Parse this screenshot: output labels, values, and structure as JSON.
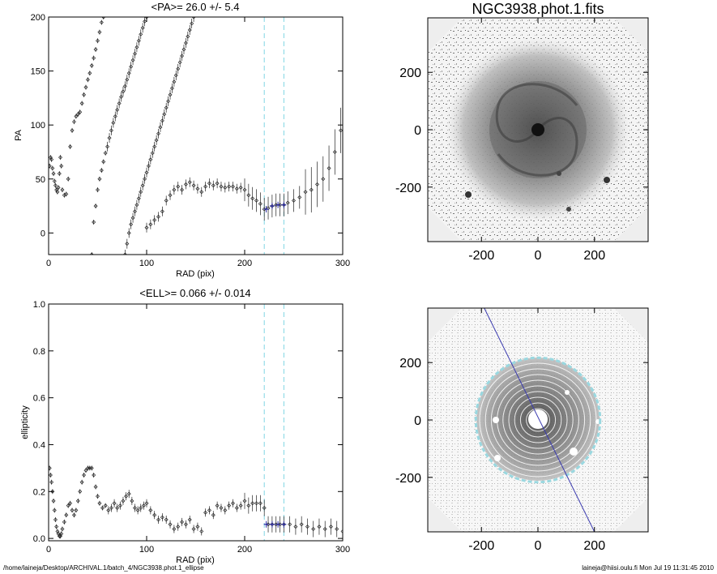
{
  "chart_data": [
    {
      "type": "scatter",
      "title": "<PA>=  26.0 +/-   5.4",
      "xlabel": "RAD (pix)",
      "ylabel": "PA",
      "xlim": [
        0,
        300
      ],
      "ylim": [
        -20,
        200
      ],
      "xticks": [
        "0",
        "100",
        "200",
        "300"
      ],
      "yticks": [
        "0",
        "50",
        "100",
        "150",
        "200"
      ],
      "vlines": [
        220,
        240
      ],
      "series": [
        {
          "points": [
            [
              1,
              62
            ],
            [
              2,
              70
            ],
            [
              3,
              68
            ],
            [
              4,
              60
            ],
            [
              5,
              55
            ],
            [
              6,
              48
            ],
            [
              7,
              44
            ],
            [
              8,
              40
            ],
            [
              9,
              38
            ],
            [
              10,
              42
            ],
            [
              11,
              55
            ],
            [
              12,
              70
            ],
            [
              13,
              62
            ],
            [
              14,
              40
            ],
            [
              16,
              35
            ],
            [
              18,
              36
            ],
            [
              20,
              50
            ],
            [
              22,
              80
            ],
            [
              24,
              95
            ],
            [
              26,
              103
            ],
            [
              28,
              108
            ],
            [
              30,
              110
            ],
            [
              32,
              112
            ],
            [
              34,
              120
            ],
            [
              36,
              128
            ],
            [
              38,
              135
            ],
            [
              40,
              142
            ],
            [
              42,
              148
            ],
            [
              44,
              155
            ],
            [
              46,
              162
            ],
            [
              48,
              170
            ],
            [
              50,
              178
            ],
            [
              52,
              186
            ],
            [
              54,
              195
            ],
            [
              56,
              200
            ]
          ]
        },
        {
          "points": [
            [
              44,
              -20
            ],
            [
              46,
              10
            ],
            [
              48,
              25
            ],
            [
              50,
              40
            ],
            [
              52,
              50
            ],
            [
              54,
              58
            ],
            [
              56,
              66
            ],
            [
              58,
              74
            ],
            [
              60,
              80
            ],
            [
              62,
              88
            ],
            [
              64,
              95
            ],
            [
              66,
              102
            ],
            [
              68,
              108
            ],
            [
              70,
              114
            ],
            [
              72,
              120
            ],
            [
              74,
              126
            ],
            [
              76,
              131
            ],
            [
              78,
              136
            ],
            [
              80,
              142
            ],
            [
              82,
              148
            ],
            [
              84,
              154
            ],
            [
              86,
              160
            ],
            [
              88,
              166
            ],
            [
              90,
              172
            ],
            [
              92,
              178
            ],
            [
              94,
              184
            ],
            [
              96,
              190
            ],
            [
              98,
              196
            ],
            [
              100,
              200
            ]
          ]
        },
        {
          "points": [
            [
              78,
              -20
            ],
            [
              80,
              -10
            ],
            [
              82,
              0
            ],
            [
              84,
              8
            ],
            [
              86,
              14
            ],
            [
              88,
              20
            ],
            [
              90,
              26
            ],
            [
              92,
              32
            ],
            [
              94,
              38
            ],
            [
              96,
              44
            ],
            [
              98,
              50
            ],
            [
              100,
              56
            ],
            [
              102,
              62
            ],
            [
              104,
              68
            ],
            [
              106,
              74
            ],
            [
              108,
              80
            ],
            [
              110,
              86
            ],
            [
              112,
              92
            ],
            [
              114,
              98
            ],
            [
              116,
              104
            ],
            [
              118,
              110
            ],
            [
              120,
              116
            ],
            [
              122,
              122
            ],
            [
              124,
              128
            ],
            [
              126,
              134
            ],
            [
              128,
              140
            ],
            [
              130,
              146
            ],
            [
              132,
              152
            ],
            [
              134,
              158
            ],
            [
              136,
              164
            ],
            [
              138,
              170
            ],
            [
              140,
              176
            ],
            [
              142,
              182
            ],
            [
              144,
              188
            ],
            [
              146,
              194
            ],
            [
              148,
              200
            ]
          ]
        },
        {
          "points": [
            [
              100,
              5
            ],
            [
              104,
              8
            ],
            [
              108,
              12
            ],
            [
              112,
              15
            ],
            [
              116,
              20
            ],
            [
              120,
              30
            ],
            [
              124,
              35
            ],
            [
              128,
              40
            ],
            [
              132,
              43
            ],
            [
              136,
              40
            ],
            [
              140,
              45
            ],
            [
              144,
              47
            ],
            [
              148,
              44
            ],
            [
              152,
              41
            ],
            [
              156,
              38
            ],
            [
              160,
              43
            ],
            [
              164,
              46
            ],
            [
              168,
              44
            ],
            [
              172,
              46
            ],
            [
              176,
              43
            ],
            [
              180,
              42
            ],
            [
              184,
              43
            ],
            [
              188,
              43
            ],
            [
              192,
              41
            ],
            [
              196,
              42
            ],
            [
              200,
              40
            ],
            [
              204,
              35
            ],
            [
              208,
              32
            ],
            [
              212,
              30
            ],
            [
              216,
              27
            ],
            [
              220,
              22
            ],
            [
              224,
              23
            ],
            [
              228,
              25
            ],
            [
              232,
              26
            ],
            [
              236,
              26
            ],
            [
              240,
              26
            ],
            [
              244,
              28
            ],
            [
              250,
              30
            ],
            [
              256,
              33
            ],
            [
              262,
              38
            ],
            [
              268,
              40
            ],
            [
              274,
              45
            ],
            [
              280,
              50
            ],
            [
              286,
              60
            ],
            [
              292,
              75
            ],
            [
              298,
              95
            ]
          ]
        }
      ],
      "highlight_points": [
        [
          222,
          22
        ],
        [
          228,
          25
        ],
        [
          234,
          26
        ],
        [
          240,
          26
        ]
      ]
    },
    {
      "type": "scatter",
      "title": "<ELL>= 0.066 +/-  0.014",
      "xlabel": "RAD (pix)",
      "ylabel": "ellipticity",
      "xlim": [
        0,
        300
      ],
      "ylim": [
        -0.01,
        1.0
      ],
      "xticks": [
        "0",
        "100",
        "200",
        "300"
      ],
      "yticks": [
        "0.0",
        "0.2",
        "0.4",
        "0.6",
        "0.8",
        "1.0"
      ],
      "vlines": [
        220,
        240
      ],
      "series": [
        {
          "points": [
            [
              1,
              0.3
            ],
            [
              2,
              0.27
            ],
            [
              3,
              0.24
            ],
            [
              4,
              0.2
            ],
            [
              5,
              0.16
            ],
            [
              6,
              0.12
            ],
            [
              7,
              0.08
            ],
            [
              8,
              0.05
            ],
            [
              9,
              0.03
            ],
            [
              10,
              0.02
            ],
            [
              11,
              0.01
            ],
            [
              12,
              0.01
            ],
            [
              13,
              0.02
            ],
            [
              14,
              0.04
            ],
            [
              16,
              0.07
            ],
            [
              18,
              0.1
            ],
            [
              20,
              0.14
            ],
            [
              22,
              0.15
            ],
            [
              24,
              0.12
            ],
            [
              26,
              0.1
            ],
            [
              28,
              0.12
            ],
            [
              30,
              0.16
            ],
            [
              32,
              0.2
            ],
            [
              34,
              0.24
            ],
            [
              36,
              0.27
            ],
            [
              38,
              0.29
            ],
            [
              40,
              0.3
            ],
            [
              42,
              0.3
            ],
            [
              44,
              0.3
            ],
            [
              46,
              0.27
            ],
            [
              48,
              0.22
            ],
            [
              50,
              0.18
            ],
            [
              52,
              0.15
            ],
            [
              55,
              0.13
            ],
            [
              58,
              0.14
            ],
            [
              61,
              0.12
            ],
            [
              64,
              0.13
            ],
            [
              67,
              0.15
            ],
            [
              70,
              0.13
            ],
            [
              73,
              0.14
            ],
            [
              76,
              0.16
            ],
            [
              79,
              0.18
            ],
            [
              82,
              0.19
            ],
            [
              85,
              0.16
            ],
            [
              88,
              0.13
            ],
            [
              91,
              0.12
            ],
            [
              94,
              0.13
            ],
            [
              97,
              0.14
            ],
            [
              100,
              0.15
            ],
            [
              104,
              0.12
            ],
            [
              108,
              0.1
            ],
            [
              112,
              0.08
            ],
            [
              116,
              0.09
            ],
            [
              120,
              0.08
            ],
            [
              124,
              0.06
            ],
            [
              128,
              0.04
            ],
            [
              132,
              0.05
            ],
            [
              136,
              0.07
            ],
            [
              140,
              0.06
            ],
            [
              144,
              0.08
            ],
            [
              148,
              0.04
            ],
            [
              152,
              0.05
            ],
            [
              156,
              0.03
            ],
            [
              160,
              0.11
            ],
            [
              164,
              0.12
            ],
            [
              168,
              0.1
            ],
            [
              172,
              0.14
            ],
            [
              176,
              0.13
            ],
            [
              180,
              0.12
            ],
            [
              184,
              0.14
            ],
            [
              188,
              0.15
            ],
            [
              192,
              0.13
            ],
            [
              196,
              0.14
            ],
            [
              200,
              0.16
            ],
            [
              204,
              0.14
            ],
            [
              208,
              0.15
            ],
            [
              212,
              0.15
            ],
            [
              216,
              0.15
            ],
            [
              220,
              0.13
            ],
            [
              224,
              0.06
            ],
            [
              228,
              0.06
            ],
            [
              232,
              0.06
            ],
            [
              236,
              0.06
            ],
            [
              240,
              0.06
            ],
            [
              246,
              0.06
            ],
            [
              252,
              0.05
            ],
            [
              258,
              0.06
            ],
            [
              264,
              0.05
            ],
            [
              270,
              0.04
            ],
            [
              276,
              0.05
            ],
            [
              282,
              0.04
            ],
            [
              288,
              0.05
            ],
            [
              294,
              0.04
            ],
            [
              300,
              0.03
            ]
          ]
        }
      ],
      "highlight_points": [
        [
          222,
          0.06
        ],
        [
          228,
          0.06
        ],
        [
          234,
          0.06
        ],
        [
          240,
          0.06
        ]
      ]
    },
    {
      "type": "heatmap",
      "title": "NGC3938.phot.1.fits",
      "xlim": [
        -390,
        390
      ],
      "ylim": [
        -390,
        390
      ],
      "xticks": [
        "-200",
        "0",
        "200"
      ],
      "yticks": [
        "-200",
        "0",
        "200"
      ]
    },
    {
      "type": "heatmap",
      "title": "",
      "xlim": [
        -390,
        390
      ],
      "ylim": [
        -390,
        390
      ],
      "xticks": [
        "-200",
        "0",
        "200"
      ],
      "yticks": [
        "-200",
        "0",
        "200"
      ],
      "ellipse_radius": 220,
      "overlay_line": [
        [
          -190,
          390
        ],
        [
          200,
          -390
        ]
      ]
    }
  ],
  "footer": {
    "path": "/home/laineja/Desktop/ARCHIVAL.1/batch_4/NGC3938.phot.1_ellipse",
    "user_time": "laineja@hiisi.oulu.fi  Mon Jul 19 11:31:45 2010"
  },
  "colors": {
    "vline": "#7fd6e4",
    "highlight": "#2c2ca8",
    "marker": "#222222",
    "ring": "#9ad8e0"
  }
}
